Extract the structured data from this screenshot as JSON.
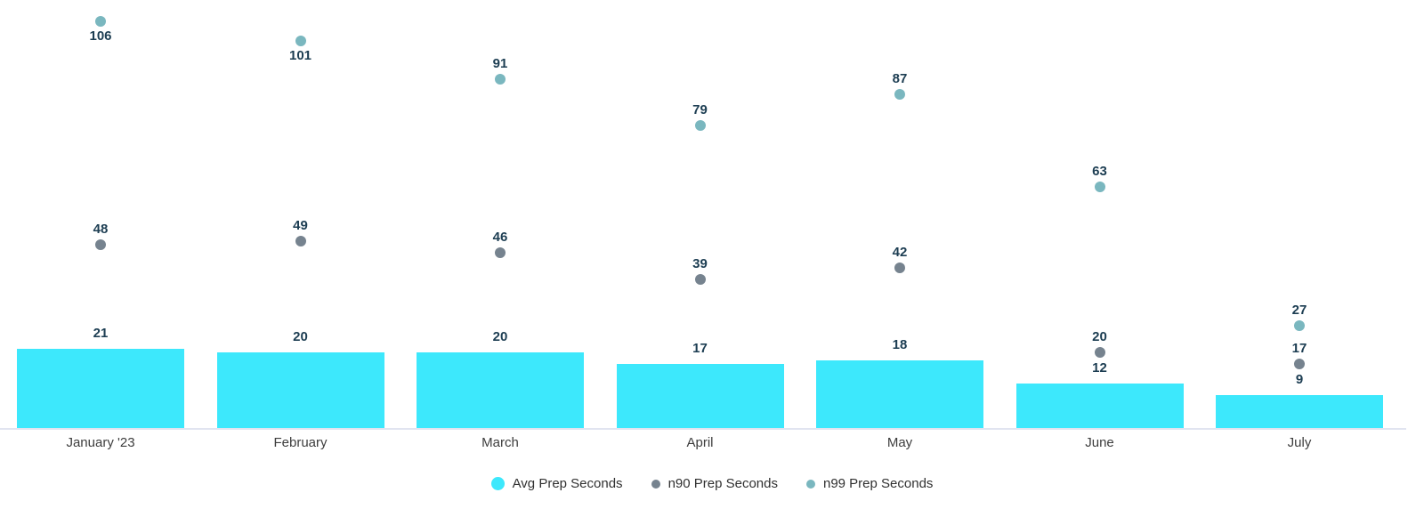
{
  "chart_data": {
    "type": "bar",
    "categories": [
      "January '23",
      "February",
      "March",
      "April",
      "May",
      "June",
      "July"
    ],
    "series": [
      {
        "name": "Avg Prep Seconds",
        "type": "bar",
        "color": "#3DE8FC",
        "values": [
          21,
          20,
          20,
          17,
          18,
          12,
          9
        ]
      },
      {
        "name": "n90 Prep Seconds",
        "type": "scatter",
        "color": "#76838F",
        "values": [
          48,
          49,
          46,
          39,
          42,
          20,
          17
        ]
      },
      {
        "name": "n99 Prep Seconds",
        "type": "scatter",
        "color": "#7AB7BF",
        "values": [
          106,
          101,
          91,
          79,
          87,
          63,
          27
        ]
      }
    ],
    "title": "",
    "xlabel": "",
    "ylabel": "",
    "ylim": [
      0,
      110
    ],
    "grid": false,
    "legend_position": "bottom",
    "value_labels": true
  },
  "colors": {
    "bar": "#3DE8FC",
    "n90_dot": "#76838F",
    "n99_dot": "#7AB7BF",
    "value_label": "#1C3D52",
    "axis_label": "#3D3D3D",
    "legend_text": "#303030",
    "baseline": "#E1E4F0"
  }
}
